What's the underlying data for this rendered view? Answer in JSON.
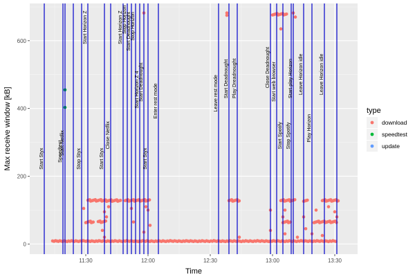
{
  "chart_data": {
    "type": "scatter",
    "xlabel": "Time",
    "ylabel": "Max receive window [kB]",
    "x_ticks": [
      {
        "t": "11:30",
        "label": "11:30"
      },
      {
        "t": "12:00",
        "label": "12:00"
      },
      {
        "t": "12:30",
        "label": "12:30"
      },
      {
        "t": "13:00",
        "label": "13:00"
      },
      {
        "t": "13:30",
        "label": "13:30"
      }
    ],
    "xlim": [
      "11:03",
      "13:41"
    ],
    "y_ticks": [
      0,
      200,
      400,
      600
    ],
    "ylim": [
      -30,
      710
    ],
    "grid": true,
    "legend": {
      "title": "type",
      "position": "right",
      "items": [
        {
          "label": "download",
          "color": "#F8766D"
        },
        {
          "label": "speedtest",
          "color": "#00BA38"
        },
        {
          "label": "update",
          "color": "#619CFF"
        }
      ]
    },
    "event_line_color": "#0000CC",
    "events": [
      {
        "time": "11:10",
        "label": "Start Styx",
        "label_y": 220
      },
      {
        "time": "11:19",
        "label": "Speedtest",
        "label_y": 240
      },
      {
        "time": "11:20",
        "label": "Start Netflix",
        "label_y": 260
      },
      {
        "time": "11:24",
        "label": "",
        "label_y": 0
      },
      {
        "time": "11:28",
        "label": "Stop Styx",
        "label_y": 220
      },
      {
        "time": "11:31",
        "label": "Start Horizon Z",
        "label_y": 590
      },
      {
        "time": "11:39",
        "label": "Start Styx",
        "label_y": 220
      },
      {
        "time": "11:42",
        "label": "Close Netflix",
        "label_y": 280
      },
      {
        "time": "11:48",
        "label": "Start Horizon Z",
        "label_y": 590
      },
      {
        "time": "11:50",
        "label": "Stop Horizon",
        "label_y": 620
      },
      {
        "time": "11:52",
        "label": "Start Deadnought",
        "label_y": 570
      },
      {
        "time": "11:54",
        "label": "Stop Horizon",
        "label_y": 600
      },
      {
        "time": "11:56",
        "label": "Start Horizon Z 4",
        "label_y": 400
      },
      {
        "time": "11:58",
        "label": "Start Deadnought",
        "label_y": 420
      },
      {
        "time": "12:00",
        "label": "Start Styx",
        "label_y": 220
      },
      {
        "time": "12:05",
        "label": "Enter rest mode",
        "label_y": 370
      },
      {
        "time": "12:34",
        "label": "Leave rest mode",
        "label_y": 390
      },
      {
        "time": "12:39",
        "label": "Start Deadnought",
        "label_y": 430
      },
      {
        "time": "12:43",
        "label": "Play Dreadnought",
        "label_y": 430
      },
      {
        "time": "12:59",
        "label": "Close Deadnought",
        "label_y": 460
      },
      {
        "time": "13:02",
        "label": "Start web browser",
        "label_y": 420
      },
      {
        "time": "13:05",
        "label": "Start Spotify",
        "label_y": 280
      },
      {
        "time": "13:09",
        "label": "Stop Spotify",
        "label_y": 280
      },
      {
        "time": "13:10",
        "label": "Start play Horizon",
        "label_y": 430
      },
      {
        "time": "13:15",
        "label": "Leave Horizon idle",
        "label_y": 440
      },
      {
        "time": "13:19",
        "label": "Play Horizon",
        "label_y": 300
      },
      {
        "time": "13:25",
        "label": "Leave Horizon idle",
        "label_y": 440
      },
      {
        "time": "13:31",
        "label": ""
      }
    ],
    "series": [
      {
        "name": "download",
        "color": "#F8766D",
        "baseline": {
          "y": 8,
          "from": "11:14",
          "to": "13:31"
        },
        "clusters": [
          {
            "from": "11:31",
            "to": "11:47",
            "y": 128
          },
          {
            "from": "11:30",
            "to": "11:34",
            "y": 65
          },
          {
            "from": "11:36",
            "to": "11:40",
            "y": 65
          },
          {
            "from": "11:49",
            "to": "12:01",
            "y": 128
          },
          {
            "from": "12:39",
            "to": "12:44",
            "y": 128
          },
          {
            "from": "13:00",
            "to": "13:07",
            "y": 678
          },
          {
            "from": "13:04",
            "to": "13:11",
            "y": 128
          },
          {
            "from": "13:05",
            "to": "13:09",
            "y": 65
          },
          {
            "from": "13:15",
            "to": "13:17",
            "y": 128
          },
          {
            "from": "13:20",
            "to": "13:31",
            "y": 65
          },
          {
            "from": "13:24",
            "to": "13:32",
            "y": 128
          }
        ],
        "points": [
          {
            "x": "11:29",
            "y": 105
          },
          {
            "x": "11:39",
            "y": 95
          },
          {
            "x": "11:40",
            "y": 80
          },
          {
            "x": "11:38",
            "y": 40
          },
          {
            "x": "11:39",
            "y": 20
          },
          {
            "x": "11:41",
            "y": 110
          },
          {
            "x": "11:52",
            "y": 105
          },
          {
            "x": "11:53",
            "y": 65
          },
          {
            "x": "11:58",
            "y": 682
          },
          {
            "x": "11:58",
            "y": 35
          },
          {
            "x": "11:59",
            "y": 110
          },
          {
            "x": "12:00",
            "y": 100
          },
          {
            "x": "12:01",
            "y": 55
          },
          {
            "x": "12:38",
            "y": 675
          },
          {
            "x": "12:38",
            "y": 682
          },
          {
            "x": "12:44",
            "y": 20
          },
          {
            "x": "12:59",
            "y": 100
          },
          {
            "x": "12:59",
            "y": 40
          },
          {
            "x": "13:04",
            "y": 635
          },
          {
            "x": "13:05",
            "y": 80
          },
          {
            "x": "13:06",
            "y": 100
          },
          {
            "x": "13:06",
            "y": 30
          },
          {
            "x": "13:10",
            "y": 682
          },
          {
            "x": "13:11",
            "y": 670
          },
          {
            "x": "13:12",
            "y": 20
          },
          {
            "x": "13:15",
            "y": 80
          },
          {
            "x": "13:16",
            "y": 45
          },
          {
            "x": "13:19",
            "y": 30
          },
          {
            "x": "13:21",
            "y": 100
          },
          {
            "x": "13:24",
            "y": 25
          },
          {
            "x": "13:27",
            "y": 110
          },
          {
            "x": "13:30",
            "y": 95
          },
          {
            "x": "13:31",
            "y": 80
          }
        ]
      },
      {
        "name": "speedtest",
        "color": "#00BA38",
        "points": [
          {
            "x": "11:20",
            "y": 455
          },
          {
            "x": "11:20",
            "y": 403
          }
        ]
      },
      {
        "name": "update",
        "color": "#619CFF",
        "points": []
      }
    ]
  }
}
